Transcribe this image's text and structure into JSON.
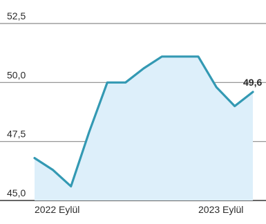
{
  "chart_data": {
    "type": "area",
    "title": "",
    "xlabel": "",
    "ylabel": "",
    "x_tick_labels": [
      "2022 Eylül",
      "2023 Eylül"
    ],
    "y_ticks": [
      "52,5",
      "50,0",
      "47,5",
      "45,0"
    ],
    "y_tick_values": [
      52.5,
      50.0,
      47.5,
      45.0
    ],
    "ylim": [
      45.0,
      52.5
    ],
    "grid": true,
    "legend": "none",
    "series": [
      {
        "values": [
          46.8,
          46.3,
          45.6,
          47.9,
          50.0,
          50.0,
          50.6,
          51.1,
          51.1,
          51.1,
          49.8,
          49.0,
          49.6
        ]
      }
    ],
    "last_value_label": "49,6",
    "colors": {
      "line": "#3399b3",
      "fill": "#ddeffa",
      "grid": "#8a8a8a",
      "text": "#2b2b2b"
    }
  }
}
